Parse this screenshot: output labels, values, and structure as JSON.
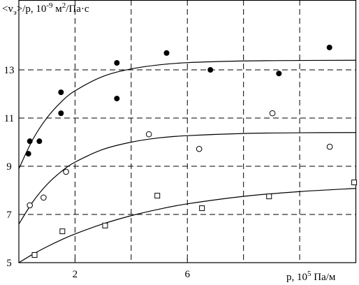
{
  "chart_data": {
    "type": "scatter",
    "y_label": [
      {
        "text": "<v"
      },
      {
        "text": "э",
        "sub": true
      },
      {
        "text": ">/p, 10"
      },
      {
        "text": "-9",
        "sup": true
      },
      {
        "text": " м"
      },
      {
        "text": "2",
        "sup": true
      },
      {
        "text": "/Па·с"
      }
    ],
    "x_label": [
      {
        "text": "p, 10"
      },
      {
        "text": "5",
        "sup": true
      },
      {
        "text": " Па/м"
      }
    ],
    "xlim": [
      0,
      12
    ],
    "ylim": [
      5,
      15.9
    ],
    "xticks": [
      2,
      6
    ],
    "yticks": [
      5,
      7,
      9,
      11,
      13
    ],
    "xgrid": [
      2,
      4,
      6,
      8,
      10
    ],
    "ygrid": [
      7,
      9,
      11,
      13
    ],
    "grid": true,
    "series": [
      {
        "marker": "filled-circle",
        "color": "#000000",
        "x": [
          0.34,
          0.39,
          0.73,
          1.5,
          1.5,
          3.49,
          3.49,
          5.26,
          6.82,
          9.26,
          11.06
        ],
        "values": [
          9.52,
          10.04,
          10.04,
          12.07,
          11.2,
          13.29,
          11.81,
          13.7,
          13.0,
          12.85,
          13.93
        ]
      },
      {
        "marker": "circle",
        "color": "#000000",
        "x": [
          0.39,
          0.88,
          1.68,
          4.63,
          6.42,
          9.03,
          11.07
        ],
        "values": [
          7.38,
          7.7,
          8.77,
          10.33,
          9.72,
          11.2,
          9.81
        ]
      },
      {
        "marker": "square",
        "color": "#000000",
        "x": [
          0.56,
          1.55,
          3.07,
          4.93,
          6.52,
          8.91,
          11.94
        ],
        "values": [
          5.32,
          6.3,
          6.54,
          7.78,
          7.26,
          7.75,
          8.33
        ]
      }
    ],
    "curves": [
      {
        "color": "#000000",
        "x": [
          0,
          0.5,
          1,
          1.5,
          2,
          3,
          4,
          5,
          6,
          8,
          10,
          12
        ],
        "values": [
          8.9,
          10.12,
          11.01,
          11.66,
          12.13,
          12.73,
          13.04,
          13.21,
          13.3,
          13.37,
          13.39,
          13.4
        ]
      },
      {
        "color": "#000000",
        "x": [
          0,
          0.5,
          1,
          1.5,
          2,
          3,
          4,
          5,
          6,
          8,
          10,
          12
        ],
        "values": [
          6.6,
          7.53,
          8.24,
          8.77,
          9.17,
          9.7,
          10.0,
          10.18,
          10.27,
          10.36,
          10.39,
          10.4
        ]
      },
      {
        "color": "#000000",
        "x": [
          0,
          0.5,
          1,
          1.5,
          2,
          3,
          4,
          5,
          6,
          8,
          10,
          12
        ],
        "values": [
          5.0,
          5.35,
          5.66,
          5.94,
          6.19,
          6.61,
          6.95,
          7.22,
          7.44,
          7.75,
          7.95,
          8.08
        ]
      }
    ]
  }
}
